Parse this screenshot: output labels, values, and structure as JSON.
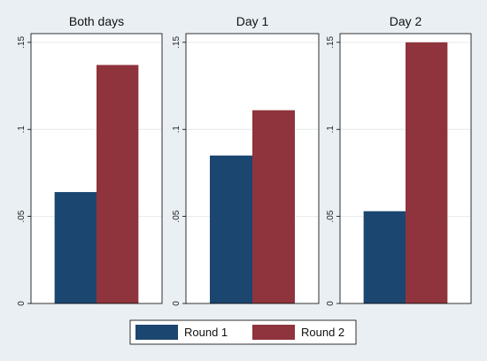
{
  "chart_data": {
    "type": "bar",
    "yticks": [
      "0",
      ".05",
      ".1",
      ".15"
    ],
    "ylim": [
      0,
      0.155
    ],
    "legend": {
      "position": "bottom",
      "items": [
        {
          "name": "Round 1",
          "color": "#1b4670"
        },
        {
          "name": "Round 2",
          "color": "#8f343c"
        }
      ]
    },
    "series": [
      {
        "name": "Round 1",
        "color": "#1b4670"
      },
      {
        "name": "Round 2",
        "color": "#8f343c"
      }
    ],
    "panels": [
      {
        "title": "Both days",
        "values": [
          0.064,
          0.137
        ]
      },
      {
        "title": "Day 1",
        "values": [
          0.085,
          0.111
        ]
      },
      {
        "title": "Day 2",
        "values": [
          0.053,
          0.15
        ]
      }
    ],
    "grid": true
  }
}
